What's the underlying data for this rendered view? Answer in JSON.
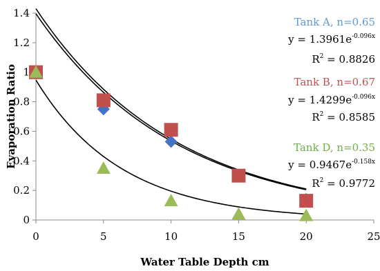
{
  "chart_data": {
    "type": "scatter",
    "xlabel": "Water Table Depth cm",
    "ylabel": "Evaporation Ratio",
    "xlim": [
      0,
      25
    ],
    "ylim": [
      0,
      1.4
    ],
    "xticks": [
      0,
      5,
      10,
      15,
      20,
      25
    ],
    "yticks": [
      0,
      0.2,
      0.4,
      0.6,
      0.8,
      1,
      1.2,
      1.4
    ],
    "xtick_labels": [
      "0",
      "5",
      "10",
      "15",
      "20",
      "25"
    ],
    "ytick_labels": [
      "0",
      "0.2",
      "0.4",
      "0.6",
      "0.8",
      "1",
      "1.2",
      "1.4"
    ],
    "grid": false,
    "series": [
      {
        "name": "Tank A, n=0.65",
        "marker": "diamond",
        "color": "#4472C4",
        "label_color": "#5B9BD5",
        "x": [
          0,
          5,
          10,
          15,
          20
        ],
        "y": [
          1.0,
          0.75,
          0.53,
          0.3,
          0.14
        ],
        "fit": {
          "a": 1.3961,
          "b": -0.096
        },
        "equation": {
          "base": "y = 1.3961e",
          "exp": "-0.096x"
        },
        "r2": {
          "pre": "R",
          "sup": "2",
          "post": " = 0.8826"
        }
      },
      {
        "name": "Tank B, n=0.67",
        "marker": "square",
        "color": "#C0504D",
        "label_color": "#C0504D",
        "x": [
          0,
          5,
          10,
          15,
          20
        ],
        "y": [
          1.0,
          0.81,
          0.61,
          0.3,
          0.13
        ],
        "fit": {
          "a": 1.4299,
          "b": -0.096
        },
        "equation": {
          "base": "y = 1.4299e",
          "exp": "-0.096x"
        },
        "r2": {
          "pre": "R",
          "sup": "2",
          "post": " = 0.8585"
        }
      },
      {
        "name": "Tank D, n=0.35",
        "marker": "triangle",
        "color": "#9BBB59",
        "label_color": "#70AD47",
        "x": [
          0,
          5,
          10,
          15,
          20
        ],
        "y": [
          1.0,
          0.35,
          0.13,
          0.04,
          0.03
        ],
        "fit": {
          "a": 0.9467,
          "b": -0.158
        },
        "equation": {
          "base": "y = 0.9467e",
          "exp": "-0.158x"
        },
        "r2": {
          "pre": "R",
          "sup": "2",
          "post": " = 0.9772"
        }
      }
    ]
  }
}
